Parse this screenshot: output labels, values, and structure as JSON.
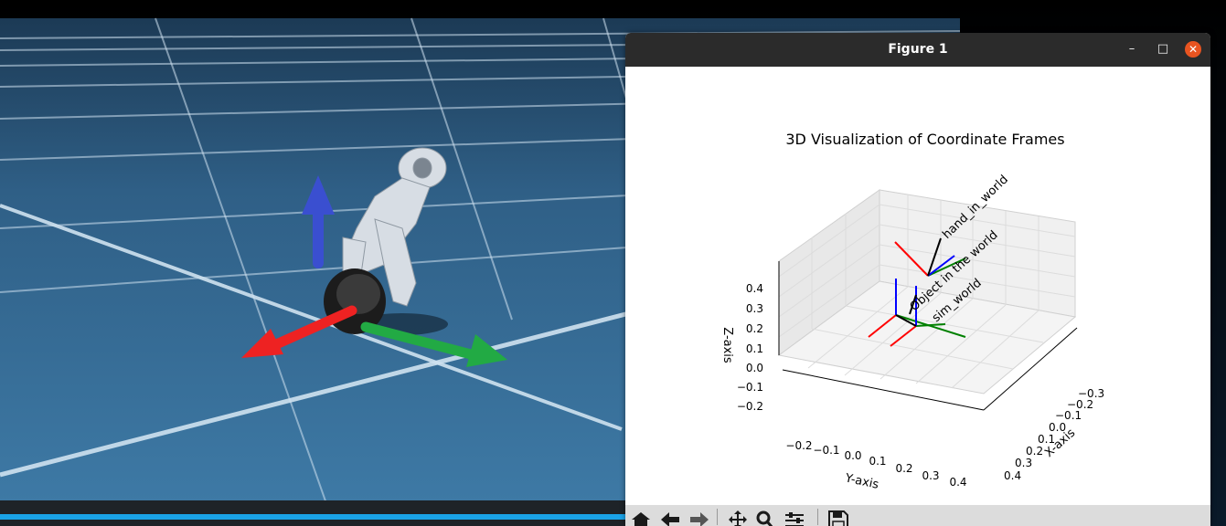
{
  "window": {
    "title": "Figure 1",
    "minimize_glyph": "–",
    "maximize_glyph": "□",
    "close_glyph": "✕"
  },
  "plot": {
    "title": "3D Visualization of Coordinate Frames",
    "z_axis_label": "Z-axis",
    "y_axis_label": "Y-axis",
    "x_axis_label": "X-axis",
    "z_ticks": [
      "0.4",
      "0.3",
      "0.2",
      "0.1",
      "0.0",
      "−0.1",
      "−0.2"
    ],
    "y_ticks": [
      "−0.2",
      "−0.1",
      "0.0",
      "0.1",
      "0.2",
      "0.3",
      "0.4"
    ],
    "x_ticks": [
      "−0.3",
      "−0.2",
      "−0.1",
      "0.0",
      "0.1",
      "0.2",
      "0.3",
      "0.4"
    ],
    "frame_labels": [
      "hand_in_world",
      "Object in the world",
      "sim_world"
    ],
    "axis_colors": {
      "x": "#ff0000",
      "y": "#008000",
      "z": "#0000ff",
      "link": "#000000"
    }
  },
  "toolbar": {
    "icons": [
      "home-icon",
      "back-icon",
      "forward-icon",
      "pan-icon",
      "zoom-icon",
      "configure-subplots-icon",
      "save-icon"
    ]
  },
  "scene": {
    "floor_color": "#3b6f96",
    "axis_colors": {
      "red": "#ee2222",
      "green": "#22aa44",
      "blue": "#3a4fd0"
    }
  }
}
